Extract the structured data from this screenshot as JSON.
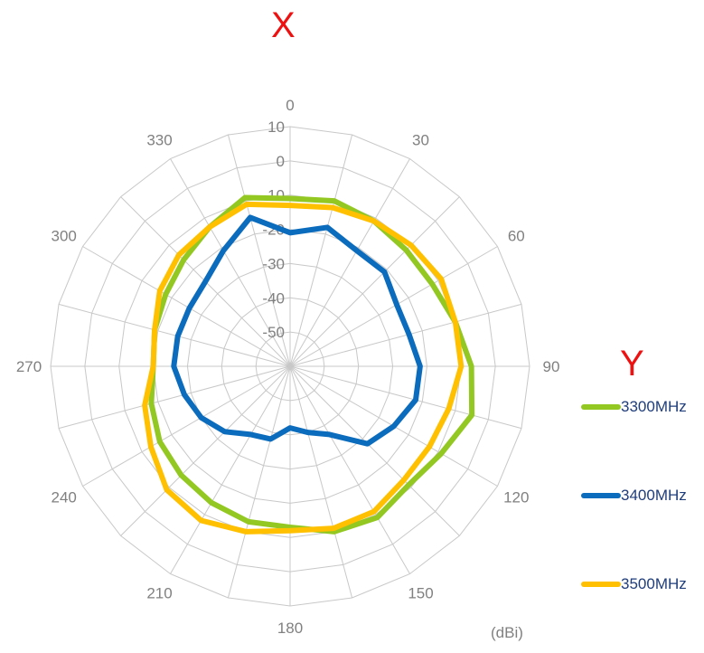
{
  "chart_data": {
    "type": "radar",
    "title": "X",
    "legend_title": "Y",
    "unit_label": "(dBi)",
    "r_ticks": [
      10,
      0,
      -10,
      -20,
      -30,
      -40,
      -50
    ],
    "r_range": [
      -60,
      10
    ],
    "angle_labels": [
      "0",
      "30",
      "60",
      "90",
      "120",
      "150",
      "180",
      "210",
      "240",
      "270",
      "300",
      "330"
    ],
    "angles": [
      0,
      15,
      30,
      45,
      60,
      75,
      90,
      105,
      120,
      135,
      150,
      165,
      180,
      195,
      210,
      225,
      240,
      255,
      270,
      285,
      300,
      315,
      330,
      345
    ],
    "legend_position": "right",
    "series": [
      {
        "name": "3300MHz",
        "color": "#92c821",
        "values": [
          -11,
          -10,
          -11,
          -12,
          -12,
          -10,
          -7,
          -5,
          -9,
          -11,
          -9,
          -10,
          -13,
          -13,
          -14,
          -15,
          -16,
          -18,
          -20,
          -19,
          -18,
          -16,
          -13,
          -9
        ]
      },
      {
        "name": "3400MHz",
        "color": "#0b6bbd",
        "values": [
          -21,
          -18,
          -21,
          -21,
          -24,
          -24,
          -22,
          -22,
          -25,
          -28,
          -37,
          -40,
          -42,
          -38,
          -37,
          -33,
          -30,
          -28,
          -26,
          -26,
          -26,
          -25,
          -21,
          -15
        ]
      },
      {
        "name": "3500MHz",
        "color": "#ffc000",
        "values": [
          -13,
          -12,
          -11,
          -10,
          -9,
          -10,
          -10,
          -12,
          -13,
          -13,
          -11,
          -11,
          -12,
          -10,
          -8,
          -9,
          -13,
          -16,
          -20,
          -19,
          -16,
          -14,
          -13,
          -11
        ]
      }
    ]
  }
}
